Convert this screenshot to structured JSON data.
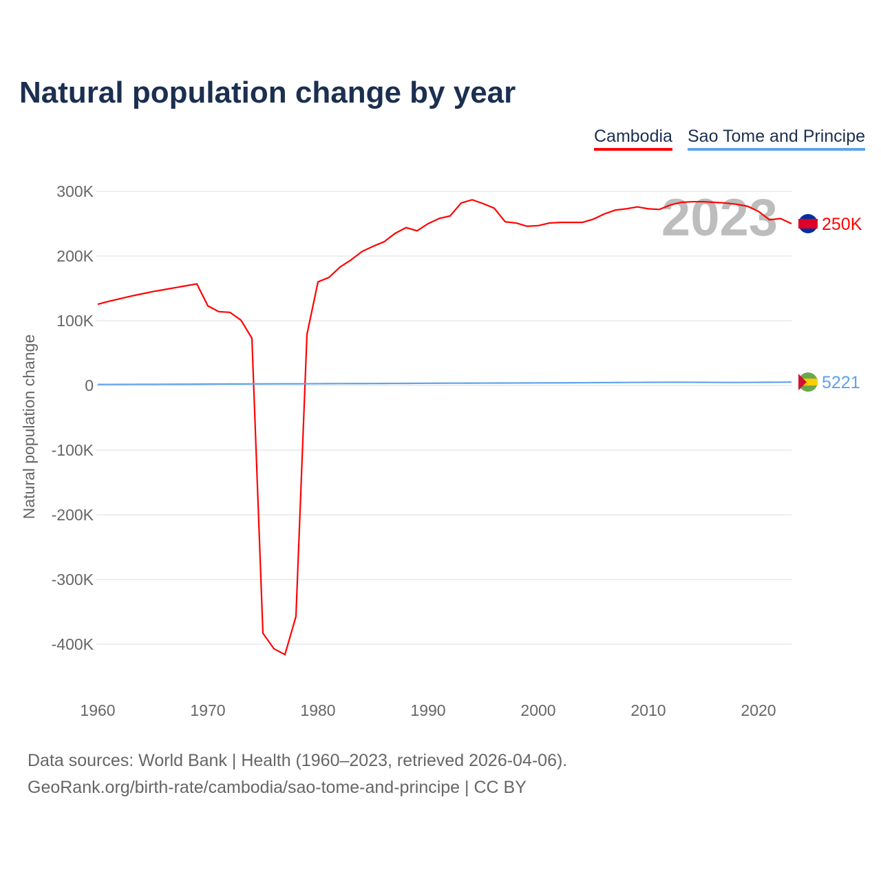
{
  "chart_data": {
    "type": "line",
    "title": "Natural population change by year",
    "ylabel": "Natural population change",
    "xlabel": "",
    "xlim": [
      1960,
      2023
    ],
    "ylim": [
      -450000,
      300000
    ],
    "yticks": [
      300000,
      200000,
      100000,
      0,
      -100000,
      -200000,
      -300000,
      -400000
    ],
    "ytick_labels": [
      "300K",
      "200K",
      "100K",
      "0",
      "-100K",
      "-200K",
      "-300K",
      "-400K"
    ],
    "xticks": [
      1960,
      1970,
      1980,
      1990,
      2000,
      2010,
      2020
    ],
    "xtick_labels": [
      "1960",
      "1970",
      "1980",
      "1990",
      "2000",
      "2010",
      "2020"
    ],
    "year_label": "2023",
    "legend_position": "top-right",
    "x": [
      1960,
      1961,
      1962,
      1963,
      1964,
      1965,
      1966,
      1967,
      1968,
      1969,
      1970,
      1971,
      1972,
      1973,
      1974,
      1975,
      1976,
      1977,
      1978,
      1979,
      1980,
      1981,
      1982,
      1983,
      1984,
      1985,
      1986,
      1987,
      1988,
      1989,
      1990,
      1991,
      1992,
      1993,
      1994,
      1995,
      1996,
      1997,
      1998,
      1999,
      2000,
      2001,
      2002,
      2003,
      2004,
      2005,
      2006,
      2007,
      2008,
      2009,
      2010,
      2011,
      2012,
      2013,
      2014,
      2015,
      2016,
      2017,
      2018,
      2019,
      2020,
      2021,
      2022,
      2023
    ],
    "series": [
      {
        "name": "Cambodia",
        "color": "#ff0000",
        "end_label": "250K",
        "values": [
          125500,
          130000,
          134000,
          138000,
          141500,
          145000,
          148000,
          151000,
          154000,
          157000,
          123000,
          114000,
          113000,
          101000,
          73000,
          -383000,
          -407000,
          -416000,
          -357000,
          79000,
          160000,
          167000,
          183000,
          194000,
          207000,
          215000,
          222000,
          235000,
          244000,
          239000,
          250000,
          258000,
          262000,
          282000,
          287000,
          281000,
          274000,
          253000,
          251000,
          246000,
          247000,
          251000,
          252000,
          252000,
          252000,
          257000,
          265000,
          271000,
          273000,
          276000,
          273000,
          272000,
          279000,
          283000,
          284000,
          284000,
          283000,
          282000,
          280000,
          277000,
          269000,
          256000,
          258000,
          250000
        ]
      },
      {
        "name": "Sao Tome and Principe",
        "color": "#5ea2ea",
        "end_label": "5221",
        "values": [
          1500,
          1550,
          1600,
          1650,
          1700,
          1750,
          1800,
          1850,
          1900,
          2000,
          2100,
          2200,
          2250,
          2300,
          2350,
          2400,
          2450,
          2500,
          2550,
          2600,
          2700,
          2800,
          2850,
          2900,
          2950,
          3000,
          3050,
          3100,
          3200,
          3300,
          3400,
          3450,
          3500,
          3550,
          3600,
          3650,
          3700,
          3750,
          3800,
          3850,
          3900,
          3950,
          4000,
          4100,
          4200,
          4300,
          4400,
          4500,
          4600,
          4700,
          4800,
          4850,
          4900,
          4900,
          4850,
          4800,
          4700,
          4600,
          4600,
          4700,
          4800,
          4900,
          5000,
          5221
        ]
      }
    ]
  },
  "footer": {
    "line1": "Data sources: World Bank | Health (1960–2023, retrieved 2026-04-06).",
    "line2": "GeoRank.org/birth-rate/cambodia/sao-tome-and-principe | CC BY"
  }
}
